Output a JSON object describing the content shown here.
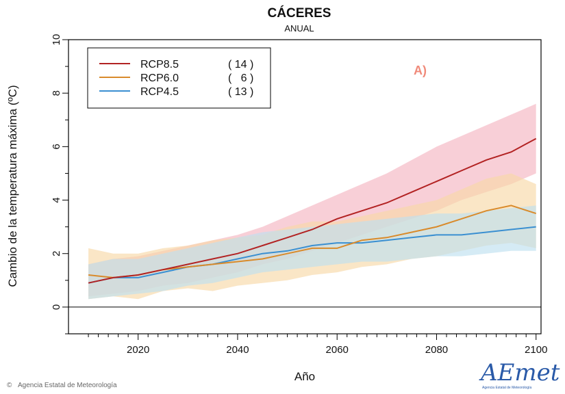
{
  "chart_data": {
    "type": "line",
    "title": "CÁCERES",
    "subtitle": "ANUAL",
    "xlabel": "Año",
    "ylabel": "Cambio de la temperatura máxima (ºC)",
    "xlim": [
      2006,
      2101
    ],
    "ylim": [
      -1,
      10
    ],
    "xticks": [
      2020,
      2040,
      2060,
      2080,
      2100
    ],
    "yticks": [
      0,
      2,
      4,
      6,
      8,
      10
    ],
    "reference_line_y": 0,
    "legend_position": "top-left",
    "panel_letter": "A)",
    "series": [
      {
        "name": "RCP8.5",
        "count": "( 14 )",
        "color": "#b22222",
        "band_color": "#f4b6c2",
        "x": [
          2010,
          2015,
          2020,
          2025,
          2030,
          2035,
          2040,
          2045,
          2050,
          2055,
          2060,
          2065,
          2070,
          2075,
          2080,
          2085,
          2090,
          2095,
          2100
        ],
        "values": [
          0.9,
          1.1,
          1.2,
          1.4,
          1.6,
          1.8,
          2.0,
          2.3,
          2.6,
          2.9,
          3.3,
          3.6,
          3.9,
          4.3,
          4.7,
          5.1,
          5.5,
          5.8,
          6.3
        ],
        "lower": [
          0.4,
          0.5,
          0.6,
          0.8,
          0.9,
          1.1,
          1.3,
          1.6,
          1.8,
          2.1,
          2.4,
          2.7,
          3.0,
          3.3,
          3.6,
          4.0,
          4.3,
          4.6,
          5.0
        ],
        "upper": [
          1.6,
          1.8,
          1.9,
          2.1,
          2.3,
          2.5,
          2.7,
          3.0,
          3.4,
          3.8,
          4.2,
          4.6,
          5.0,
          5.5,
          6.0,
          6.4,
          6.8,
          7.2,
          7.6
        ]
      },
      {
        "name": "RCP6.0",
        "count": "(   6 )",
        "color": "#d98a2a",
        "band_color": "#f7d9a8",
        "x": [
          2010,
          2015,
          2020,
          2025,
          2030,
          2035,
          2040,
          2045,
          2050,
          2055,
          2060,
          2065,
          2070,
          2075,
          2080,
          2085,
          2090,
          2095,
          2100
        ],
        "values": [
          1.2,
          1.1,
          1.2,
          1.4,
          1.5,
          1.6,
          1.7,
          1.8,
          2.0,
          2.2,
          2.2,
          2.5,
          2.6,
          2.8,
          3.0,
          3.3,
          3.6,
          3.8,
          3.5
        ],
        "lower": [
          0.3,
          0.4,
          0.3,
          0.6,
          0.7,
          0.6,
          0.8,
          0.9,
          1.0,
          1.2,
          1.3,
          1.5,
          1.6,
          1.8,
          1.9,
          2.1,
          2.3,
          2.4,
          2.2
        ],
        "upper": [
          2.2,
          2.0,
          2.0,
          2.2,
          2.3,
          2.5,
          2.6,
          2.7,
          3.0,
          3.2,
          3.2,
          3.4,
          3.6,
          3.8,
          4.0,
          4.4,
          4.8,
          5.0,
          4.6
        ]
      },
      {
        "name": "RCP4.5",
        "count": "( 13 )",
        "color": "#3a8fd1",
        "band_color": "#bfe0ef",
        "x": [
          2010,
          2015,
          2020,
          2025,
          2030,
          2035,
          2040,
          2045,
          2050,
          2055,
          2060,
          2065,
          2070,
          2075,
          2080,
          2085,
          2090,
          2095,
          2100
        ],
        "values": [
          0.9,
          1.1,
          1.1,
          1.3,
          1.5,
          1.6,
          1.8,
          2.0,
          2.1,
          2.3,
          2.4,
          2.4,
          2.5,
          2.6,
          2.7,
          2.7,
          2.8,
          2.9,
          3.0
        ],
        "lower": [
          0.3,
          0.4,
          0.5,
          0.6,
          0.8,
          0.9,
          1.1,
          1.3,
          1.4,
          1.5,
          1.6,
          1.7,
          1.7,
          1.8,
          1.9,
          1.9,
          2.0,
          2.1,
          2.1
        ],
        "upper": [
          1.6,
          1.8,
          1.8,
          2.0,
          2.2,
          2.4,
          2.6,
          2.8,
          2.9,
          3.0,
          3.1,
          3.2,
          3.3,
          3.4,
          3.5,
          3.5,
          3.6,
          3.7,
          3.8
        ]
      }
    ]
  },
  "footer": {
    "copyright_symbol": "©",
    "agency": "Agencia Estatal de Meteorología"
  },
  "logo": {
    "text": "AEmet",
    "subtext": "Agencia Estatal de Meteorología"
  }
}
